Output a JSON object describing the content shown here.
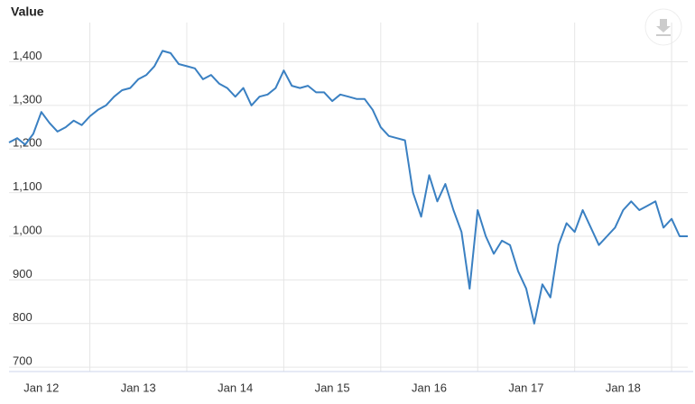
{
  "chart_data": {
    "type": "line",
    "y_label": "Value",
    "categories": [
      null,
      null,
      null,
      null,
      "Jan 12",
      null,
      null,
      null,
      null,
      null,
      null,
      null,
      null,
      null,
      null,
      null,
      "Jan 13",
      null,
      null,
      null,
      null,
      null,
      null,
      null,
      null,
      null,
      null,
      null,
      "Jan 14",
      null,
      null,
      null,
      null,
      null,
      null,
      null,
      null,
      null,
      null,
      null,
      "Jan 15",
      null,
      null,
      null,
      null,
      null,
      null,
      null,
      null,
      null,
      null,
      null,
      "Jan 16",
      null,
      null,
      null,
      null,
      null,
      null,
      null,
      null,
      null,
      null,
      null,
      "Jan 17",
      null,
      null,
      null,
      null,
      null,
      null,
      null,
      null,
      null,
      null,
      null,
      "Jan 18",
      null,
      null,
      null,
      null,
      null,
      null,
      null,
      null
    ],
    "series": [
      {
        "color": "#3a80c2",
        "values": [
          1215,
          1225,
          1210,
          1235,
          1285,
          1260,
          1240,
          1250,
          1265,
          1255,
          1275,
          1290,
          1300,
          1320,
          1335,
          1340,
          1360,
          1370,
          1390,
          1425,
          1420,
          1395,
          1390,
          1385,
          1360,
          1370,
          1350,
          1340,
          1320,
          1340,
          1300,
          1320,
          1325,
          1340,
          1380,
          1345,
          1340,
          1345,
          1330,
          1330,
          1310,
          1325,
          1320,
          1315,
          1315,
          1290,
          1250,
          1230,
          1225,
          1220,
          1100,
          1045,
          1140,
          1080,
          1120,
          1060,
          1010,
          880,
          1060,
          1000,
          960,
          990,
          980,
          920,
          880,
          800,
          890,
          860,
          980,
          1030,
          1010,
          1060,
          1020,
          980,
          1000,
          1020,
          1060,
          1080,
          1060,
          1070,
          1080,
          1020,
          1040,
          1000,
          1000
        ]
      }
    ],
    "ylim": [
      690,
      1490
    ],
    "yticks": [
      700,
      800,
      900,
      {
        "value": 1000,
        "label": "1,000"
      },
      {
        "value": 1100,
        "label": "1,100"
      },
      {
        "value": 1200,
        "label": "1,200"
      },
      {
        "value": 1300,
        "label": "1,300"
      },
      {
        "value": 1400,
        "label": "1,400"
      }
    ],
    "grid": true
  }
}
